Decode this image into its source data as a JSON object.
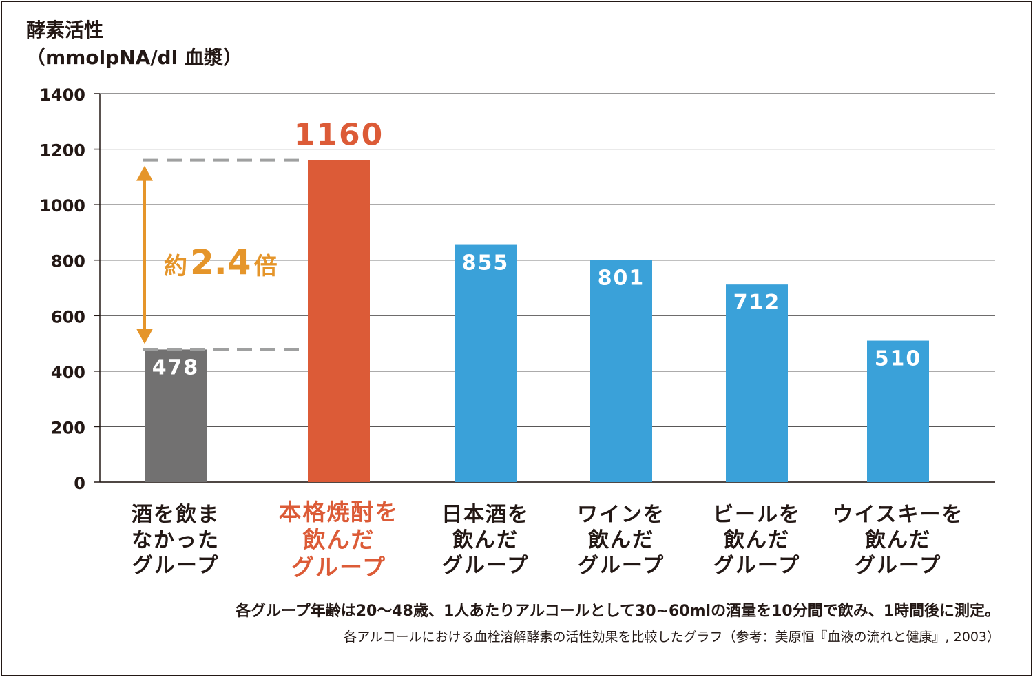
{
  "chart_data": {
    "type": "bar",
    "ylabel_line1": "酵素活性",
    "ylabel_line2": "（mmolpNA/dl 血漿）",
    "ylim": [
      0,
      1400
    ],
    "yticks": [
      0,
      200,
      400,
      600,
      800,
      1000,
      1200,
      1400
    ],
    "grid": true,
    "categories": [
      [
        "酒を飲ま",
        "なかった",
        "グループ"
      ],
      [
        "本格焼酎を",
        "飲んだ",
        "グループ"
      ],
      [
        "日本酒を",
        "飲んだ",
        "グループ"
      ],
      [
        "ワインを",
        "飲んだ",
        "グループ"
      ],
      [
        "ビールを",
        "飲んだ",
        "グループ"
      ],
      [
        "ウイスキーを",
        "飲んだ",
        "グループ"
      ]
    ],
    "values": [
      478,
      1160,
      855,
      801,
      712,
      510
    ],
    "data_labels": [
      "478",
      "1160",
      "855",
      "801",
      "712",
      "510"
    ],
    "colors": [
      "#727171",
      "#dc5b37",
      "#3aa1d9",
      "#3aa1d9",
      "#3aa1d9",
      "#3aa1d9"
    ],
    "category_label_colors": [
      "#231815",
      "#dc5b37",
      "#231815",
      "#231815",
      "#231815",
      "#231815"
    ],
    "annotation": {
      "prefix": "約",
      "value": "2.4",
      "suffix": "倍",
      "color": "#e5952a",
      "from_value": 478,
      "to_value": 1160,
      "guide_color": "#9fa0a0"
    }
  },
  "notes": {
    "line1": "各グループ年齢は20〜48歳、1人あたりアルコールとして30~60mlの酒量を10分間で飲み、1時間後に測定。",
    "line2": "各アルコールにおける血栓溶解酵素の活性効果を比較したグラフ（参考：美原恒『血液の流れと健康』, 2003）"
  }
}
